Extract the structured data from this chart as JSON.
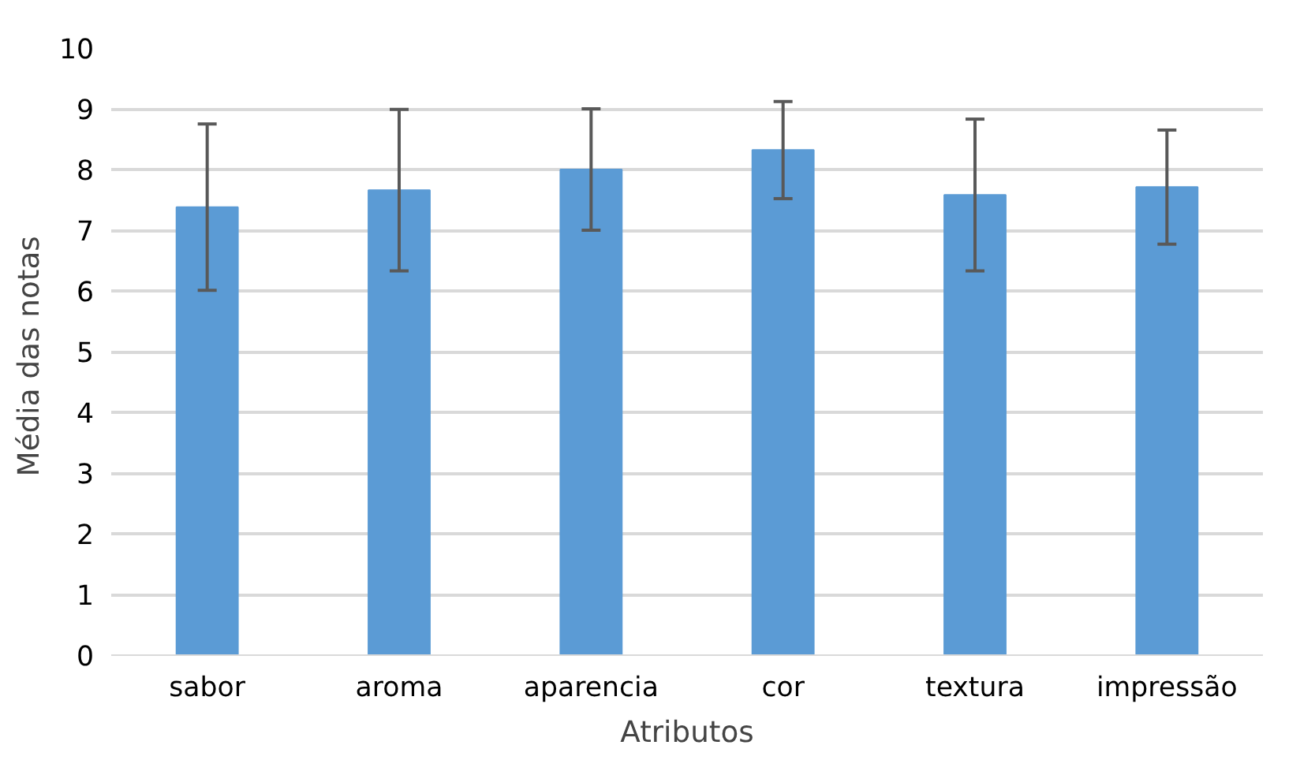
{
  "chart_data": {
    "type": "bar",
    "xlabel": "Atributos",
    "ylabel": "Média  das notas",
    "categories": [
      "sabor",
      "aroma",
      "aparencia",
      "cor",
      "textura",
      "impressão"
    ],
    "values": [
      7.38,
      7.66,
      8.0,
      8.32,
      7.58,
      7.71
    ],
    "errors": [
      1.37,
      1.33,
      1.0,
      0.8,
      1.25,
      0.94
    ],
    "color": "#5b9bd5",
    "ylim": [
      0,
      10
    ],
    "yticks": [
      0,
      1,
      2,
      3,
      4,
      5,
      6,
      7,
      8,
      9,
      10
    ],
    "grid": "y"
  }
}
